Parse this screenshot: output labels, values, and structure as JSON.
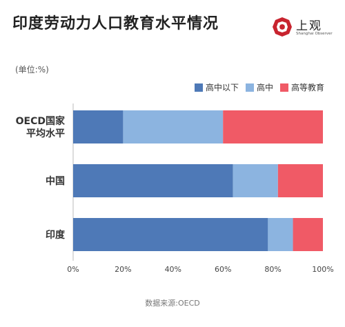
{
  "title": "印度劳动力人口教育水平情况",
  "logo": {
    "name": "上观",
    "subtitle": "Shanghai Observer"
  },
  "unit_label": "(单位:%)",
  "source": "数据来源:OECD",
  "colors": {
    "below_high": "#4E79B7",
    "high": "#8CB4E0",
    "higher": "#F05A66",
    "axis": "#BBBBBB",
    "logo": "#C8242F"
  },
  "chart_data": {
    "type": "bar",
    "orientation": "horizontal",
    "stacked": true,
    "normalized": true,
    "categories": [
      [
        "OECD国家",
        "平均水平"
      ],
      [
        "中国"
      ],
      [
        "印度"
      ]
    ],
    "series": [
      {
        "name": "高中以下",
        "color": "#4E79B7",
        "values": [
          20,
          64,
          78
        ]
      },
      {
        "name": "高中",
        "color": "#8CB4E0",
        "values": [
          40,
          18,
          10
        ]
      },
      {
        "name": "高等教育",
        "color": "#F05A66",
        "values": [
          40,
          18,
          12
        ]
      }
    ],
    "xlim": [
      0,
      100
    ],
    "xticks": [
      "0%",
      "20%",
      "40%",
      "60%",
      "80%",
      "100%"
    ],
    "grid": false,
    "legend_position": "top-right"
  }
}
